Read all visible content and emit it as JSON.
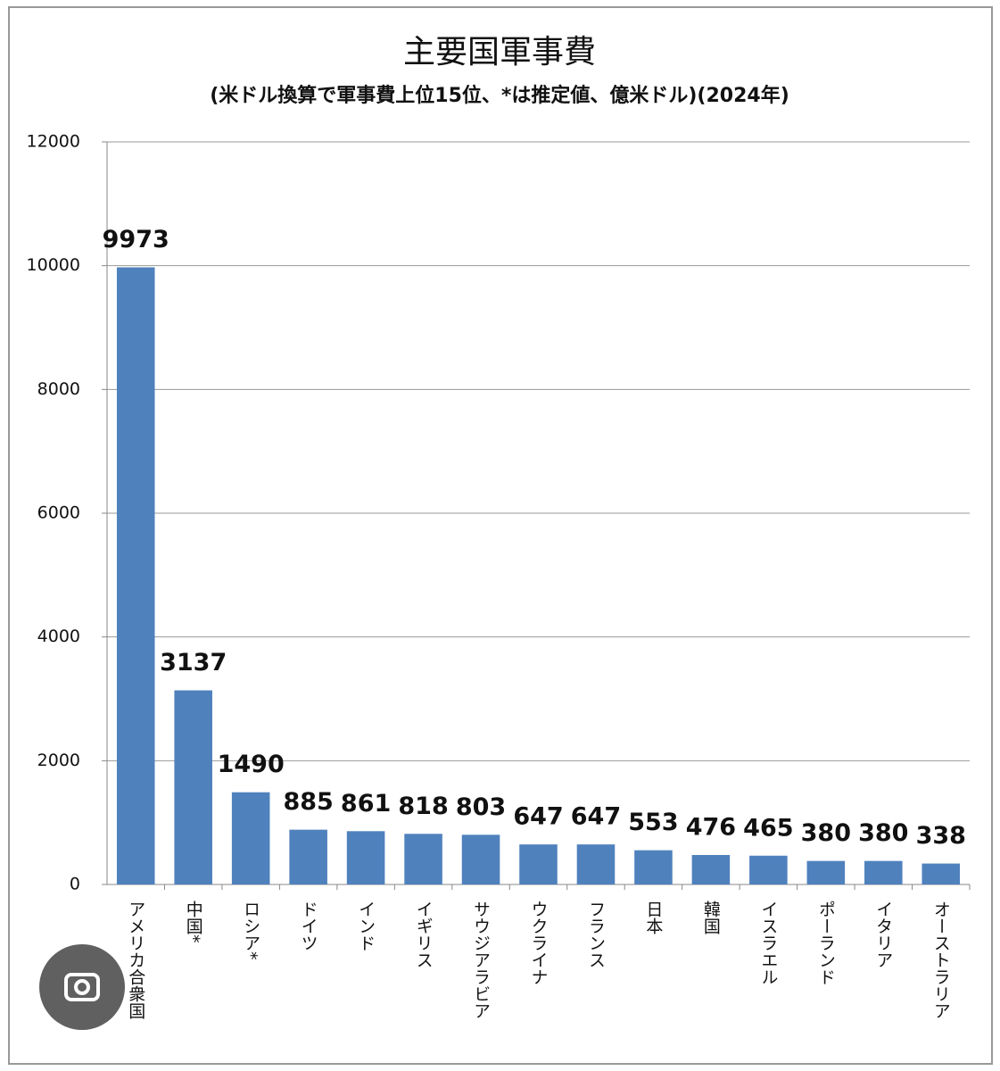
{
  "chart_data": {
    "type": "bar",
    "title": "主要国軍事費",
    "subtitle": "(米ドル換算で軍事費上位15位、*は推定値、億米ドル)(2024年)",
    "categories": [
      "アメリカ合衆国",
      "中国*",
      "ロシア*",
      "ドイツ",
      "インド",
      "イギリス",
      "サウジアラビア",
      "ウクライナ",
      "フランス",
      "日本",
      "韓国",
      "イスラエル",
      "ポーランド",
      "イタリア",
      "オーストラリア"
    ],
    "values": [
      9973,
      3137,
      1490,
      885,
      861,
      818,
      803,
      647,
      647,
      553,
      476,
      465,
      380,
      380,
      338
    ],
    "color": "#4f81bd",
    "ylim": [
      0,
      12000
    ],
    "yticks": [
      0,
      2000,
      4000,
      6000,
      8000,
      10000,
      12000
    ],
    "grid": true
  }
}
